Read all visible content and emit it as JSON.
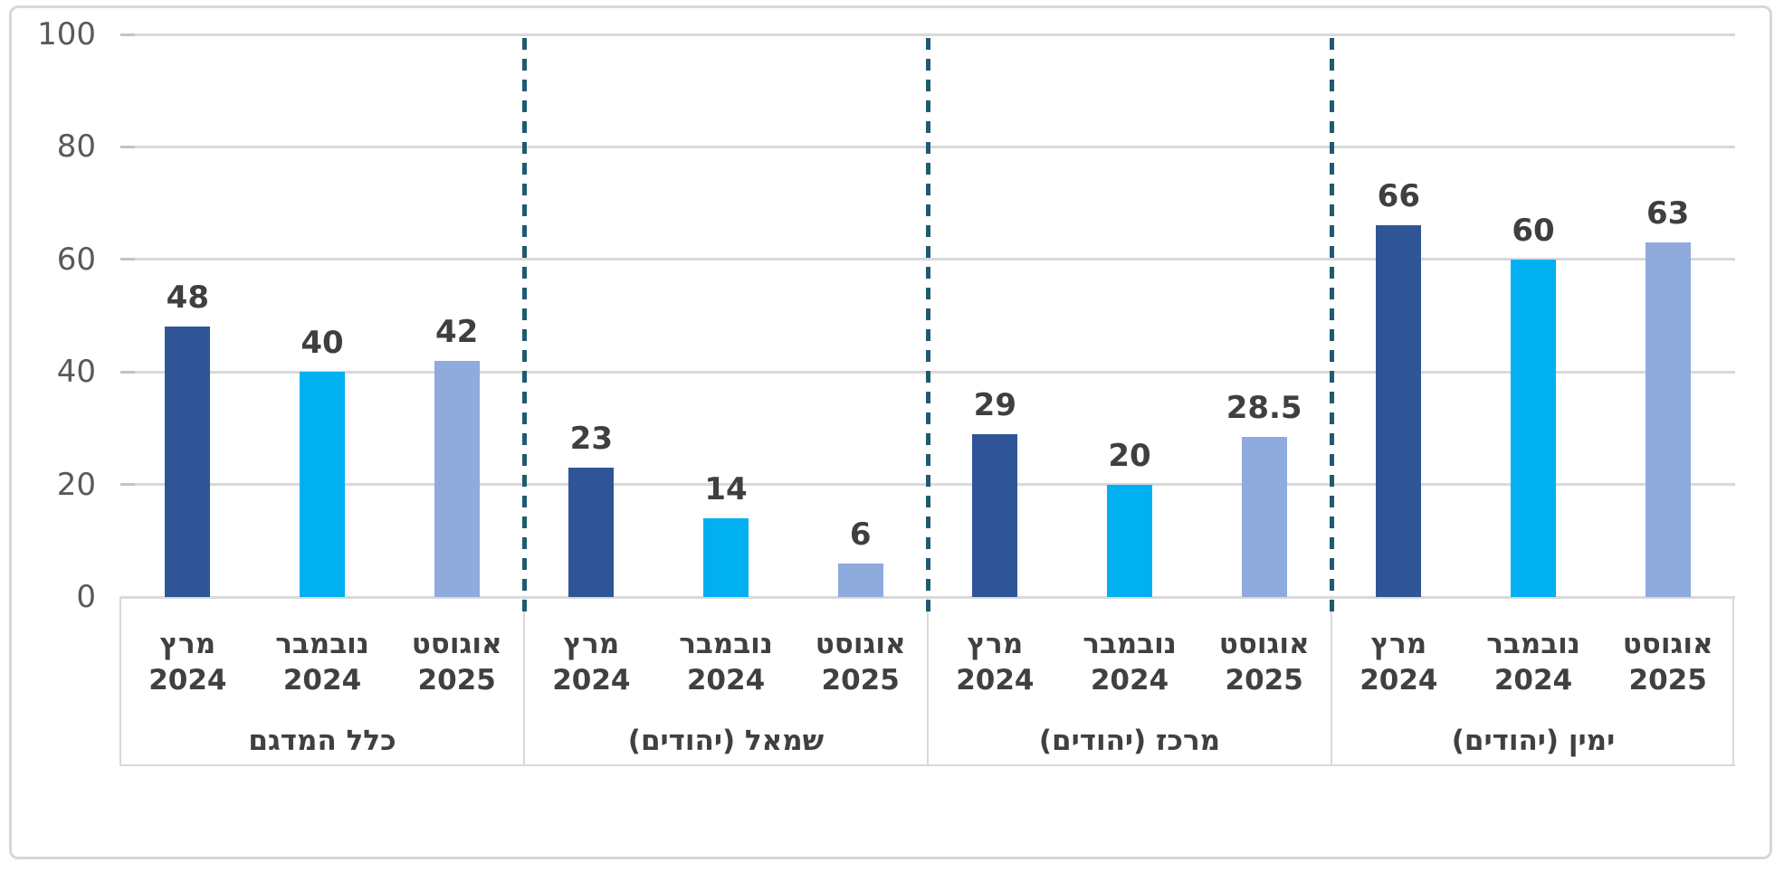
{
  "chart_data": {
    "type": "bar",
    "title": "",
    "xlabel": "",
    "ylabel": "",
    "ylim": [
      0,
      100
    ],
    "yticks": [
      0,
      20,
      40,
      60,
      80,
      100
    ],
    "grid": true,
    "legend": "none",
    "rtl": true,
    "series_period_labels": [
      "מרץ 2024",
      "נובמבר 2024",
      "אוגוסט 2025"
    ],
    "series_colors": [
      "#2F5597",
      "#00B0F0",
      "#8FAADC"
    ],
    "groups": [
      {
        "label": "כלל המדגם",
        "values": [
          48,
          40,
          42
        ]
      },
      {
        "label": "שמאל (יהודים)",
        "values": [
          23,
          14,
          6
        ]
      },
      {
        "label": "מרכז (יהודים)",
        "values": [
          29,
          20,
          28.5
        ]
      },
      {
        "label": "ימין (יהודים)",
        "values": [
          66,
          60,
          63
        ]
      }
    ],
    "colors": {
      "separator": "#1F5B70",
      "gridline": "#D9D9D9",
      "axis_tick_text": "#595959",
      "value_label_text": "#3F3F3F",
      "category_text": "#404040",
      "frame_border": "#D7D7D7"
    }
  }
}
